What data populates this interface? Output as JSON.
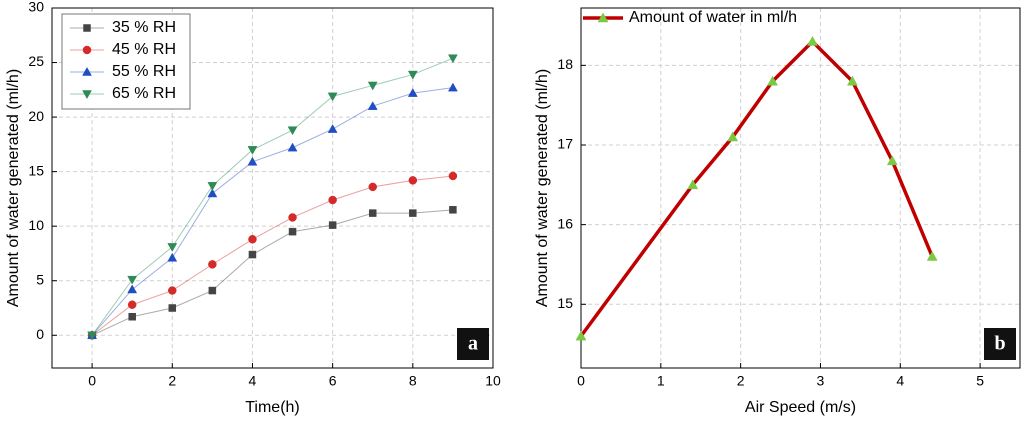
{
  "chart_data": [
    {
      "type": "line",
      "panel_label": "a",
      "x_label": "Time(h)",
      "y_label": "Amount of water generated (ml/h)",
      "x": [
        0,
        1,
        2,
        3,
        4,
        5,
        6,
        7,
        8,
        9
      ],
      "series": [
        {
          "name": "35 % RH",
          "color": "#444444",
          "marker": "square",
          "values": [
            0,
            1.7,
            2.5,
            4.1,
            7.4,
            9.5,
            10.1,
            11.2,
            11.2,
            11.5
          ]
        },
        {
          "name": "45 % RH",
          "color": "#d42a2a",
          "marker": "circle",
          "values": [
            0,
            2.8,
            4.1,
            6.5,
            8.8,
            10.8,
            12.4,
            13.6,
            14.2,
            14.6
          ]
        },
        {
          "name": "55 % RH",
          "color": "#1f4fc2",
          "marker": "triangle-up",
          "values": [
            0,
            4.2,
            7.1,
            13,
            15.9,
            17.2,
            18.9,
            21,
            22.2,
            22.7
          ]
        },
        {
          "name": "65 % RH",
          "color": "#2e8b57",
          "marker": "triangle-down",
          "values": [
            0,
            5.1,
            8.1,
            13.7,
            17,
            18.8,
            21.9,
            22.9,
            23.9,
            25.4
          ]
        }
      ],
      "xlim": [
        -1,
        10
      ],
      "xticks": [
        0,
        2,
        4,
        6,
        8,
        10
      ],
      "ylim": [
        -3,
        30
      ],
      "yticks": [
        0,
        5,
        10,
        15,
        20,
        25,
        30
      ],
      "grid": true,
      "legend": "upper left"
    },
    {
      "type": "line",
      "panel_label": "b",
      "x_label": "Air Speed (m/s)",
      "y_label": "Amount of water generated (ml/h)",
      "x": [
        0,
        1.4,
        1.9,
        2.4,
        2.9,
        3.4,
        3.9,
        4.4
      ],
      "series": [
        {
          "name": "Amount of water in ml/h",
          "color": "#c00000",
          "marker": "triangle-up",
          "marker_color": "#7ac943",
          "values": [
            14.6,
            16.5,
            17.1,
            17.8,
            18.3,
            17.8,
            16.8,
            15.6
          ]
        }
      ],
      "xlim": [
        0,
        5.5
      ],
      "xticks": [
        0,
        1,
        2,
        3,
        4,
        5
      ],
      "ylim": [
        14.2,
        18.72
      ],
      "yticks": [
        15,
        16,
        17,
        18
      ],
      "grid": true,
      "legend": "upper left"
    }
  ]
}
